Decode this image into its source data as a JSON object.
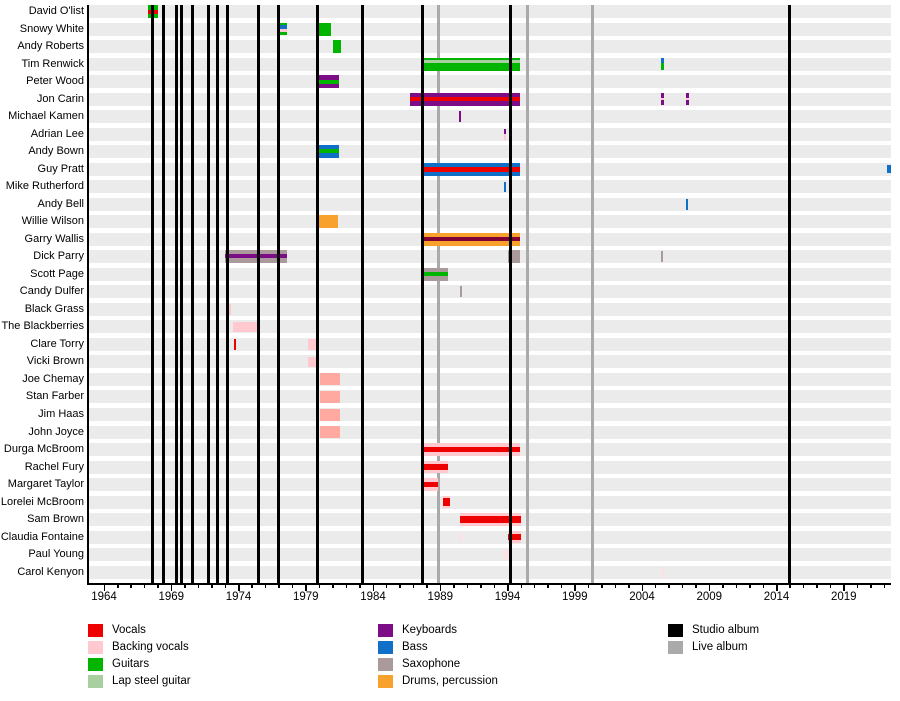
{
  "chart_data": {
    "type": "timeline",
    "title": "",
    "description": "Gantt-style timeline of Pink Floyd touring/session musicians by instrument, with studio and live album release lines",
    "x_axis": {
      "min": 1964,
      "max": 2023,
      "major_tick_years": [
        1964,
        1969,
        1974,
        1979,
        1984,
        1989,
        1994,
        1999,
        2004,
        2009,
        2014,
        2019
      ],
      "tick_labels": [
        "1964",
        "1969",
        "1974",
        "1979",
        "1984",
        "1989",
        "1994",
        "1999",
        "2004",
        "2009",
        "2014",
        "2019"
      ],
      "minor_tick_every": 1
    },
    "rows": [
      "David O'list",
      "Snowy White",
      "Andy Roberts",
      "Tim Renwick",
      "Peter Wood",
      "Jon Carin",
      "Michael Kamen",
      "Adrian Lee",
      "Andy Bown",
      "Guy Pratt",
      "Mike Rutherford",
      "Andy Bell",
      "Willie Wilson",
      "Garry Wallis",
      "Dick Parry",
      "Scott Page",
      "Candy Dulfer",
      "Black Grass",
      "The Blackberries",
      "Clare Torry",
      "Vicki Brown",
      "Joe Chemay",
      "Stan Farber",
      "Jim Haas",
      "John Joyce",
      "Durga McBroom",
      "Rachel Fury",
      "Margaret Taylor",
      "Lorelei McBroom",
      "Sam Brown",
      "Claudia Fontaine",
      "Paul Young",
      "Carol Kenyon"
    ],
    "palette": {
      "vocals": "#ee0000",
      "backing_vocals": "#ffc9cf",
      "backing_vocals_strong": "#ffa9a1",
      "backing_vocals_faint": "#ffdfe2",
      "guitars": "#00b400",
      "lap_steel": "#a8cf9f",
      "keyboards": "#7d0d86",
      "bass": "#1070c8",
      "saxophone": "#ab9a9b",
      "drums": "#f9a12d",
      "vocals_dark": "#800033",
      "studio_album": "#000000",
      "live_album": "#aaaaaa",
      "row_band": "#ebebeb"
    },
    "album_lines": {
      "studio_years": [
        1967.6,
        1968.45,
        1969.4,
        1969.75,
        1970.6,
        1971.75,
        1972.45,
        1973.2,
        1975.5,
        1977.0,
        1979.88,
        1983.2,
        1987.65,
        1994.25,
        2014.95
      ],
      "live_years": [
        1988.9,
        1995.45,
        2000.3
      ]
    },
    "bars": [
      {
        "row": 0,
        "start": 1967.3,
        "end": 1968.05,
        "h": 1,
        "layers": [
          [
            "guitars",
            0,
            1
          ],
          [
            "vocals",
            0.35,
            0.7
          ]
        ]
      },
      {
        "row": 1,
        "start": 1976.85,
        "end": 1977.6,
        "h": 0.95,
        "layers": [
          [
            "guitars",
            0,
            1
          ],
          [
            "bass",
            0.2,
            0.5
          ],
          [
            "backing_vocals",
            0.5,
            0.78
          ]
        ]
      },
      {
        "row": 1,
        "start": 1979.9,
        "end": 1980.85,
        "h": 1,
        "layers": [
          [
            "guitars",
            0,
            1
          ]
        ]
      },
      {
        "row": 2,
        "start": 1981.05,
        "end": 1981.6,
        "h": 1,
        "layers": [
          [
            "guitars",
            0,
            1
          ]
        ]
      },
      {
        "row": 3,
        "start": 1987.7,
        "end": 1994.95,
        "h": 1,
        "layers": [
          [
            "guitars",
            0,
            1
          ],
          [
            "lap_steel",
            0.2,
            0.45
          ]
        ]
      },
      {
        "row": 3,
        "start": 2005.4,
        "end": 2005.62,
        "h": 0.9,
        "layers": [
          [
            "bass",
            0,
            0.45
          ],
          [
            "guitars",
            0.45,
            1
          ]
        ]
      },
      {
        "row": 4,
        "start": 1979.9,
        "end": 1981.5,
        "h": 1,
        "layers": [
          [
            "keyboards",
            0,
            1
          ],
          [
            "guitars",
            0.35,
            0.65
          ]
        ]
      },
      {
        "row": 5,
        "start": 1986.75,
        "end": 1994.95,
        "h": 1,
        "layers": [
          [
            "keyboards",
            0,
            1
          ],
          [
            "vocals",
            0.32,
            0.68
          ]
        ]
      },
      {
        "row": 5,
        "start": 2005.4,
        "end": 2005.62,
        "h": 0.9,
        "layers": [
          [
            "keyboards",
            0,
            0.38
          ],
          [
            "backing_vocals",
            0.38,
            0.6
          ],
          [
            "keyboards",
            0.6,
            1
          ]
        ]
      },
      {
        "row": 5,
        "start": 2007.25,
        "end": 2007.47,
        "h": 0.9,
        "layers": [
          [
            "keyboards",
            0,
            0.38
          ],
          [
            "backing_vocals",
            0.38,
            0.6
          ],
          [
            "keyboards",
            0.6,
            1
          ]
        ]
      },
      {
        "row": 6,
        "start": 1990.42,
        "end": 1990.58,
        "h": 0.85,
        "layers": [
          [
            "keyboards",
            0,
            1
          ]
        ]
      },
      {
        "row": 7,
        "start": 1993.7,
        "end": 1993.87,
        "h": 0.85,
        "layers": [
          [
            "keyboards",
            0,
            0.5
          ],
          [
            "backing_vocals",
            0.5,
            1
          ]
        ]
      },
      {
        "row": 8,
        "start": 1979.9,
        "end": 1981.5,
        "h": 1,
        "layers": [
          [
            "bass",
            0,
            1
          ],
          [
            "guitars",
            0.3,
            0.6
          ]
        ]
      },
      {
        "row": 9,
        "start": 1987.8,
        "end": 1994.95,
        "h": 1,
        "layers": [
          [
            "bass",
            0,
            1
          ],
          [
            "vocals",
            0.32,
            0.68
          ]
        ]
      },
      {
        "row": 9,
        "start": 2022.2,
        "end": 2022.48,
        "h": 0.6,
        "layers": [
          [
            "bass",
            0,
            1
          ]
        ]
      },
      {
        "row": 10,
        "start": 1993.75,
        "end": 1993.9,
        "h": 0.8,
        "layers": [
          [
            "bass",
            0,
            1
          ]
        ]
      },
      {
        "row": 11,
        "start": 2007.25,
        "end": 2007.45,
        "h": 0.85,
        "layers": [
          [
            "bass",
            0,
            1
          ]
        ]
      },
      {
        "row": 12,
        "start": 1979.9,
        "end": 1981.4,
        "h": 1,
        "layers": [
          [
            "drums",
            0,
            1
          ]
        ]
      },
      {
        "row": 13,
        "start": 1987.7,
        "end": 1994.95,
        "h": 1,
        "layers": [
          [
            "drums",
            0,
            1
          ],
          [
            "vocals_dark",
            0.33,
            0.66
          ]
        ]
      },
      {
        "row": 14,
        "start": 1973.0,
        "end": 1977.6,
        "h": 1,
        "layers": [
          [
            "saxophone",
            0,
            1
          ],
          [
            "keyboards",
            0.3,
            0.62
          ]
        ]
      },
      {
        "row": 14,
        "start": 1994.05,
        "end": 1994.95,
        "h": 1,
        "layers": [
          [
            "saxophone",
            0,
            1
          ]
        ]
      },
      {
        "row": 14,
        "start": 2005.4,
        "end": 2005.6,
        "h": 0.85,
        "layers": [
          [
            "saxophone",
            0,
            1
          ]
        ]
      },
      {
        "row": 15,
        "start": 1987.6,
        "end": 1989.6,
        "h": 1,
        "layers": [
          [
            "saxophone",
            0,
            1
          ],
          [
            "guitars",
            0.3,
            0.62
          ]
        ]
      },
      {
        "row": 16,
        "start": 1990.45,
        "end": 1990.62,
        "h": 0.85,
        "layers": [
          [
            "saxophone",
            0,
            1
          ]
        ]
      },
      {
        "row": 17,
        "start": 1973.05,
        "end": 1973.45,
        "h": 0.85,
        "layers": [
          [
            "backing_vocals",
            0,
            1
          ]
        ]
      },
      {
        "row": 18,
        "start": 1973.6,
        "end": 1975.45,
        "h": 0.8,
        "layers": [
          [
            "backing_vocals",
            0,
            1
          ]
        ]
      },
      {
        "row": 19,
        "start": 1973.65,
        "end": 1973.8,
        "h": 0.9,
        "layers": [
          [
            "vocals",
            0,
            1
          ]
        ]
      },
      {
        "row": 19,
        "start": 1979.15,
        "end": 1979.9,
        "h": 0.85,
        "layers": [
          [
            "backing_vocals",
            0,
            1
          ]
        ]
      },
      {
        "row": 20,
        "start": 1979.15,
        "end": 1979.9,
        "h": 0.8,
        "layers": [
          [
            "backing_vocals",
            0,
            1
          ]
        ]
      },
      {
        "row": 21,
        "start": 1980.05,
        "end": 1981.55,
        "h": 0.92,
        "layers": [
          [
            "backing_vocals_strong",
            0,
            1
          ]
        ]
      },
      {
        "row": 22,
        "start": 1980.05,
        "end": 1981.55,
        "h": 0.92,
        "layers": [
          [
            "backing_vocals_strong",
            0,
            1
          ]
        ]
      },
      {
        "row": 23,
        "start": 1980.05,
        "end": 1981.55,
        "h": 0.92,
        "layers": [
          [
            "backing_vocals_strong",
            0,
            1
          ]
        ]
      },
      {
        "row": 24,
        "start": 1980.05,
        "end": 1981.55,
        "h": 0.92,
        "layers": [
          [
            "backing_vocals_strong",
            0,
            1
          ]
        ]
      },
      {
        "row": 25,
        "start": 1987.7,
        "end": 1994.95,
        "h": 1,
        "layers": [
          [
            "backing_vocals",
            0,
            1
          ],
          [
            "vocals",
            0.28,
            0.72
          ]
        ]
      },
      {
        "row": 26,
        "start": 1987.7,
        "end": 1989.6,
        "h": 0.95,
        "layers": [
          [
            "backing_vocals",
            0,
            1
          ],
          [
            "vocals",
            0.26,
            0.72
          ]
        ]
      },
      {
        "row": 27,
        "start": 1987.7,
        "end": 1988.85,
        "h": 0.95,
        "layers": [
          [
            "backing_vocals",
            0,
            1
          ],
          [
            "vocals",
            0.26,
            0.72
          ]
        ]
      },
      {
        "row": 28,
        "start": 1989.2,
        "end": 1989.72,
        "h": 0.9,
        "layers": [
          [
            "backing_vocals",
            0,
            1
          ],
          [
            "vocals",
            0.18,
            0.82
          ]
        ]
      },
      {
        "row": 29,
        "start": 1990.5,
        "end": 1995.0,
        "h": 0.95,
        "layers": [
          [
            "backing_vocals",
            0,
            1
          ],
          [
            "vocals",
            0.25,
            0.75
          ]
        ]
      },
      {
        "row": 30,
        "start": 1990.5,
        "end": 1990.64,
        "h": 0.8,
        "layers": [
          [
            "backing_vocals_faint",
            0,
            1
          ]
        ]
      },
      {
        "row": 30,
        "start": 1994.05,
        "end": 1995.0,
        "h": 0.95,
        "layers": [
          [
            "backing_vocals",
            0,
            1
          ],
          [
            "vocals",
            0.25,
            0.75
          ]
        ]
      },
      {
        "row": 31,
        "start": 1993.7,
        "end": 1994.0,
        "h": 0.7,
        "layers": [
          [
            "backing_vocals_faint",
            0,
            1
          ]
        ]
      },
      {
        "row": 32,
        "start": 2005.45,
        "end": 2005.65,
        "h": 0.85,
        "layers": [
          [
            "backing_vocals_faint",
            0,
            1
          ]
        ]
      }
    ],
    "legend": {
      "columns": [
        [
          {
            "label": "Vocals",
            "color": "vocals"
          },
          {
            "label": "Backing vocals",
            "color": "backing_vocals"
          },
          {
            "label": "Guitars",
            "color": "guitars"
          },
          {
            "label": "Lap steel guitar",
            "color": "lap_steel"
          }
        ],
        [
          {
            "label": "Keyboards",
            "color": "keyboards"
          },
          {
            "label": "Bass",
            "color": "bass"
          },
          {
            "label": "Saxophone",
            "color": "saxophone"
          },
          {
            "label": "Drums, percussion",
            "color": "drums"
          }
        ],
        [
          {
            "label": "Studio album",
            "color": "studio_album"
          },
          {
            "label": "Live album",
            "color": "live_album"
          }
        ]
      ]
    }
  }
}
